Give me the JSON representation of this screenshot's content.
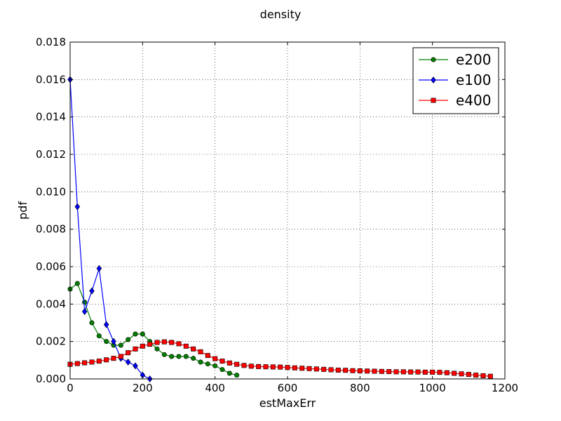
{
  "chart_data": {
    "type": "line",
    "title": "density",
    "xlabel": "estMaxErr",
    "ylabel": "pdf",
    "xlim": [
      0,
      1200
    ],
    "ylim": [
      0,
      0.018
    ],
    "xticks": [
      "0",
      "200",
      "400",
      "600",
      "800",
      "1000",
      "1200"
    ],
    "yticks": [
      "0.000",
      "0.002",
      "0.004",
      "0.006",
      "0.008",
      "0.010",
      "0.012",
      "0.014",
      "0.016",
      "0.018"
    ],
    "grid": true,
    "legend": "top-right",
    "series": [
      {
        "name": "e200",
        "color": "#007f00",
        "marker": "circle",
        "x": [
          0,
          20,
          40,
          60,
          80,
          100,
          120,
          140,
          160,
          180,
          200,
          220,
          240,
          260,
          280,
          300,
          320,
          340,
          360,
          380,
          400,
          420,
          440,
          460
        ],
        "y": [
          0.0048,
          0.0051,
          0.0041,
          0.003,
          0.0023,
          0.002,
          0.0018,
          0.0018,
          0.0021,
          0.0024,
          0.0024,
          0.002,
          0.0016,
          0.0013,
          0.0012,
          0.0012,
          0.0012,
          0.0011,
          0.0009,
          0.0008,
          0.0007,
          0.0005,
          0.0003,
          0.0002
        ]
      },
      {
        "name": "e100",
        "color": "#0000ff",
        "marker": "diamond",
        "x": [
          0,
          20,
          40,
          60,
          80,
          100,
          120,
          140,
          160,
          180,
          200,
          220
        ],
        "y": [
          0.016,
          0.0092,
          0.0036,
          0.0047,
          0.0059,
          0.0029,
          0.002,
          0.0011,
          0.0009,
          0.0007,
          0.0002,
          0.0
        ]
      },
      {
        "name": "e400",
        "color": "#ff0000",
        "marker": "square",
        "x": [
          0,
          20,
          40,
          60,
          80,
          100,
          120,
          140,
          160,
          180,
          200,
          220,
          240,
          260,
          280,
          300,
          320,
          340,
          360,
          380,
          400,
          420,
          440,
          460,
          480,
          500,
          520,
          540,
          560,
          580,
          600,
          620,
          640,
          660,
          680,
          700,
          720,
          740,
          760,
          780,
          800,
          820,
          840,
          860,
          880,
          900,
          920,
          940,
          960,
          980,
          1000,
          1020,
          1040,
          1060,
          1080,
          1100,
          1120,
          1140,
          1160
        ],
        "y": [
          0.00078,
          0.00082,
          0.00086,
          0.0009,
          0.00095,
          0.00102,
          0.0011,
          0.0012,
          0.0014,
          0.0016,
          0.00175,
          0.00185,
          0.00195,
          0.00198,
          0.00195,
          0.00188,
          0.00175,
          0.0016,
          0.00145,
          0.00125,
          0.00108,
          0.00095,
          0.00085,
          0.00078,
          0.00072,
          0.00068,
          0.00066,
          0.00065,
          0.00064,
          0.00063,
          0.00061,
          0.00059,
          0.00057,
          0.00055,
          0.00053,
          0.00051,
          0.00049,
          0.00047,
          0.00046,
          0.00044,
          0.00043,
          0.00042,
          0.00041,
          0.0004,
          0.00039,
          0.00038,
          0.00038,
          0.00037,
          0.00037,
          0.00036,
          0.00036,
          0.00035,
          0.00033,
          0.0003,
          0.00027,
          0.00024,
          0.0002,
          0.00017,
          0.00014
        ]
      }
    ]
  }
}
